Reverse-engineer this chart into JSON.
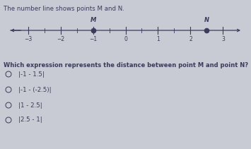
{
  "title": "The number line shows points M and N.",
  "question": "Which expression represents the distance between point M and point N?",
  "number_line": {
    "xmin": -3.6,
    "xmax": 3.6,
    "ticks": [
      -3,
      -2,
      -1,
      0,
      1,
      2,
      3
    ],
    "point_M": -1,
    "point_N": 2.5,
    "label_M": "M",
    "label_N": "N"
  },
  "options": [
    "|-1 - 1.5|",
    "|-1 - (-2.5)|",
    "|1 - 2.5|",
    "|2.5 - 1|"
  ],
  "bg_color": "#c8cad4",
  "text_color": "#3a3c5a",
  "line_color": "#3a3c5a",
  "point_color": "#3a3c5a"
}
